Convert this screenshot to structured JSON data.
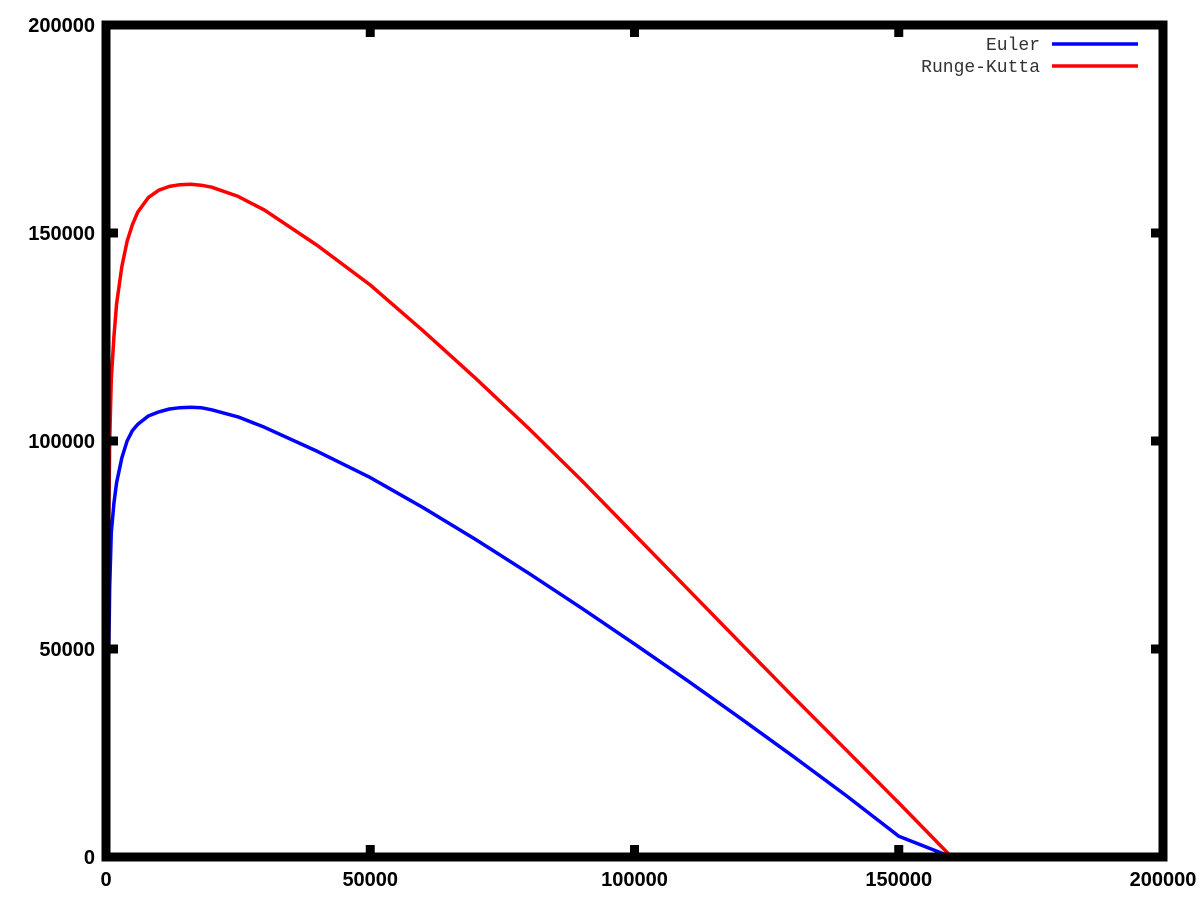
{
  "chart_data": {
    "type": "line",
    "title": "",
    "xlabel": "",
    "ylabel": "",
    "xlim": [
      0,
      200000
    ],
    "ylim": [
      0,
      200000
    ],
    "x_ticks": [
      0,
      50000,
      100000,
      150000,
      200000
    ],
    "y_ticks": [
      0,
      50000,
      100000,
      150000,
      200000
    ],
    "x_tick_labels": [
      "0",
      "50000",
      "100000",
      "150000",
      "200000"
    ],
    "y_tick_labels": [
      "0",
      "50000",
      "100000",
      "150000",
      "200000"
    ],
    "grid": false,
    "legend_position": "top-right",
    "series": [
      {
        "name": "Euler",
        "color": "#0000ff",
        "x": [
          300,
          400,
          500,
          700,
          1000,
          1500,
          2000,
          3000,
          4000,
          5000,
          6000,
          8000,
          10000,
          12000,
          14000,
          16000,
          18000,
          20000,
          25000,
          30000,
          40000,
          50000,
          60000,
          70000,
          80000,
          90000,
          100000,
          110000,
          120000,
          130000,
          140000,
          150000,
          160000
        ],
        "y": [
          0,
          20000,
          45000,
          65000,
          78000,
          85000,
          90000,
          96000,
          100000,
          102500,
          104000,
          106000,
          107000,
          107700,
          108000,
          108100,
          108000,
          107500,
          105800,
          103300,
          97500,
          91200,
          84000,
          76300,
          68200,
          59800,
          51200,
          42400,
          33400,
          24200,
          14800,
          5000,
          0
        ]
      },
      {
        "name": "Runge-Kutta",
        "color": "#ff0000",
        "x": [
          300,
          400,
          500,
          700,
          1000,
          1500,
          2000,
          3000,
          4000,
          5000,
          6000,
          8000,
          10000,
          12000,
          14000,
          16000,
          18000,
          20000,
          25000,
          30000,
          40000,
          50000,
          60000,
          70000,
          80000,
          90000,
          100000,
          110000,
          120000,
          130000,
          140000,
          150000,
          160000
        ],
        "y": [
          0,
          40000,
          75000,
          100000,
          115000,
          125000,
          133000,
          142000,
          148000,
          152000,
          155000,
          158500,
          160300,
          161200,
          161600,
          161700,
          161500,
          161000,
          158800,
          155500,
          147000,
          137500,
          126500,
          115000,
          103000,
          90500,
          77500,
          64500,
          51500,
          38500,
          25800,
          13000,
          0
        ]
      }
    ]
  }
}
